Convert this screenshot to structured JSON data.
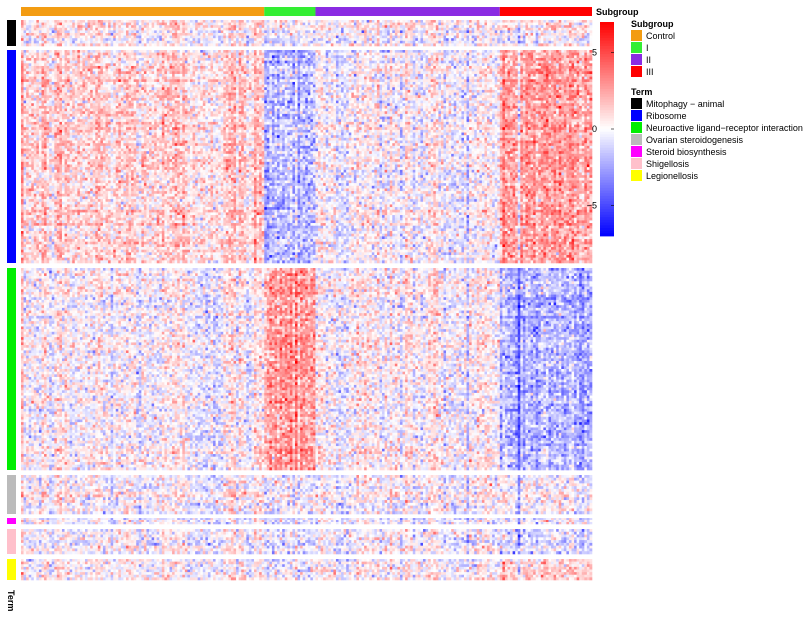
{
  "chart_data": {
    "type": "heatmap",
    "top_annotation_label": "Subgroup",
    "row_annotation_label": "Term",
    "subgroups": [
      {
        "name": "Control",
        "color": "#F39C12",
        "samples": 95
      },
      {
        "name": "I",
        "color": "#33EE33",
        "samples": 20
      },
      {
        "name": "II",
        "color": "#8A2BE2",
        "samples": 72
      },
      {
        "name": "III",
        "color": "#FF0000",
        "samples": 36
      }
    ],
    "terms": [
      {
        "name": "Mitophagy − animal",
        "color": "#000000",
        "genes": 10
      },
      {
        "name": "Ribosome",
        "color": "#0000FF",
        "genes": 80
      },
      {
        "name": "Neuroactive ligand−receptor interaction",
        "color": "#00EE00",
        "genes": 76
      },
      {
        "name": "Ovarian steroidogenesis",
        "color": "#BBBBBB",
        "genes": 14
      },
      {
        "name": "Steroid biosynthesis",
        "color": "#FF00FF",
        "genes": 3
      },
      {
        "name": "Shigellosis",
        "color": "#FFC0CB",
        "genes": 9
      },
      {
        "name": "Legionellosis",
        "color": "#FFFF00",
        "genes": 8
      }
    ],
    "color_scale": {
      "min": -7,
      "max": 7,
      "low": "#0000FF",
      "mid": "#FFFFFF",
      "high": "#FF0000"
    },
    "colorbar_ticks": [
      5,
      0,
      -5
    ],
    "colorbar_tick_labels": [
      "5",
      "0",
      "−5"
    ],
    "pattern": [
      [
        0.1,
        0.0,
        0.0,
        0.0
      ],
      [
        0.6,
        -0.8,
        0.0,
        1.4
      ],
      [
        0.0,
        1.7,
        0.1,
        -1.1
      ],
      [
        0.0,
        0.0,
        0.0,
        0.0
      ],
      [
        0.0,
        0.0,
        0.0,
        0.0
      ],
      [
        0.0,
        0.0,
        0.0,
        -0.4
      ],
      [
        0.0,
        0.0,
        0.0,
        0.6
      ]
    ]
  }
}
